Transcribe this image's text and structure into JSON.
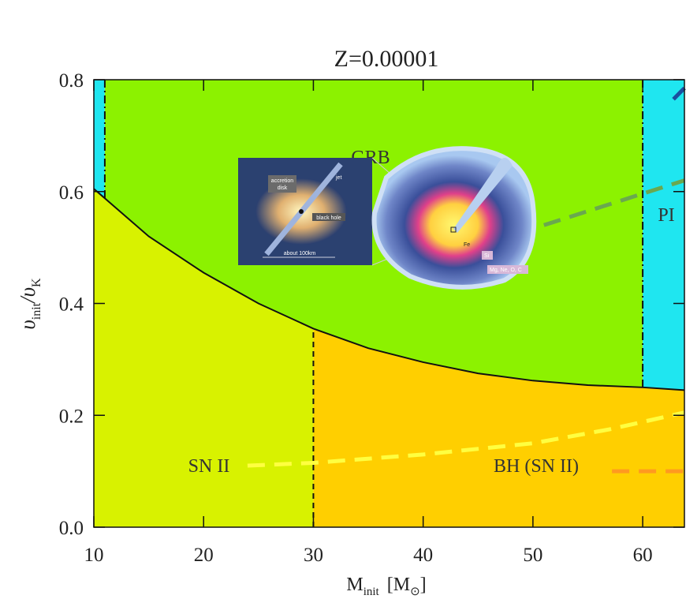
{
  "chart_data": {
    "type": "region",
    "title": "Z=0.00001",
    "xlabel": [
      "M",
      "init",
      "[M",
      "⊙",
      "]"
    ],
    "ylabel": [
      "υ",
      "init",
      "/υ",
      "K"
    ],
    "xlim": [
      10,
      63.8
    ],
    "ylim": [
      0,
      0.8
    ],
    "xticks": [
      10,
      20,
      30,
      40,
      50,
      60
    ],
    "yticks": [
      {
        "value": 0,
        "label": "0.0"
      },
      0.2,
      0.4,
      0.6,
      0.8
    ],
    "boundary": {
      "x": [
        10,
        15,
        20,
        25,
        30,
        35,
        40,
        45,
        50,
        55,
        60,
        63.8
      ],
      "y": [
        0.605,
        0.52,
        0.455,
        0.4,
        0.355,
        0.32,
        0.295,
        0.275,
        0.262,
        0.254,
        0.25,
        0.245
      ]
    },
    "regions": [
      {
        "side": "above",
        "x": [
          10,
          11
        ],
        "color": "#1fe6f0"
      },
      {
        "side": "above",
        "x": [
          11,
          60
        ],
        "color": "#8cf200"
      },
      {
        "side": "above",
        "x": [
          60,
          63.8
        ],
        "color": "#1fe6f0"
      },
      {
        "side": "below",
        "x": [
          10,
          30
        ],
        "color": "#d8f200"
      },
      {
        "side": "below",
        "x": [
          30,
          63.8
        ],
        "color": "#ffcf00"
      }
    ],
    "vlines": [
      {
        "x": 11,
        "side": "above",
        "dash": "dashdot"
      },
      {
        "x": 30,
        "side": "below",
        "dash": "dash"
      },
      {
        "x": 60,
        "side": "above",
        "dash": "dashdot"
      }
    ],
    "lines": [
      {
        "color": "#ffff40",
        "x": [
          24,
          30,
          40,
          50,
          57,
          63.8
        ],
        "y": [
          0.11,
          0.115,
          0.13,
          0.15,
          0.175,
          0.205
        ]
      },
      {
        "color": "#ff9a20",
        "x": [
          57.2,
          63.8
        ],
        "y": [
          0.1,
          0.1
        ]
      },
      {
        "color": "#6aa84f",
        "x": [
          51,
          63.8
        ],
        "y": [
          0.54,
          0.62
        ]
      },
      {
        "color": "#1a4fa0",
        "x": [
          62.8,
          63.8
        ],
        "y": [
          0.765,
          0.785
        ]
      }
    ],
    "grb_band": {
      "x": [
        43,
        47
      ],
      "y": [
        0.615,
        0.628
      ],
      "color": "#22cc22"
    },
    "labels": {
      "sn": "SN II",
      "bh": "BH (SN II)",
      "pi": "PI",
      "grb": "GRB"
    },
    "inset": {
      "disk": [
        "accretion",
        "disk"
      ],
      "jet": "jet",
      "hole": "black hole",
      "scale": "about 100km",
      "fe": "Fe",
      "si": "Si",
      "outer": "Mg, Ne, O, C"
    }
  }
}
